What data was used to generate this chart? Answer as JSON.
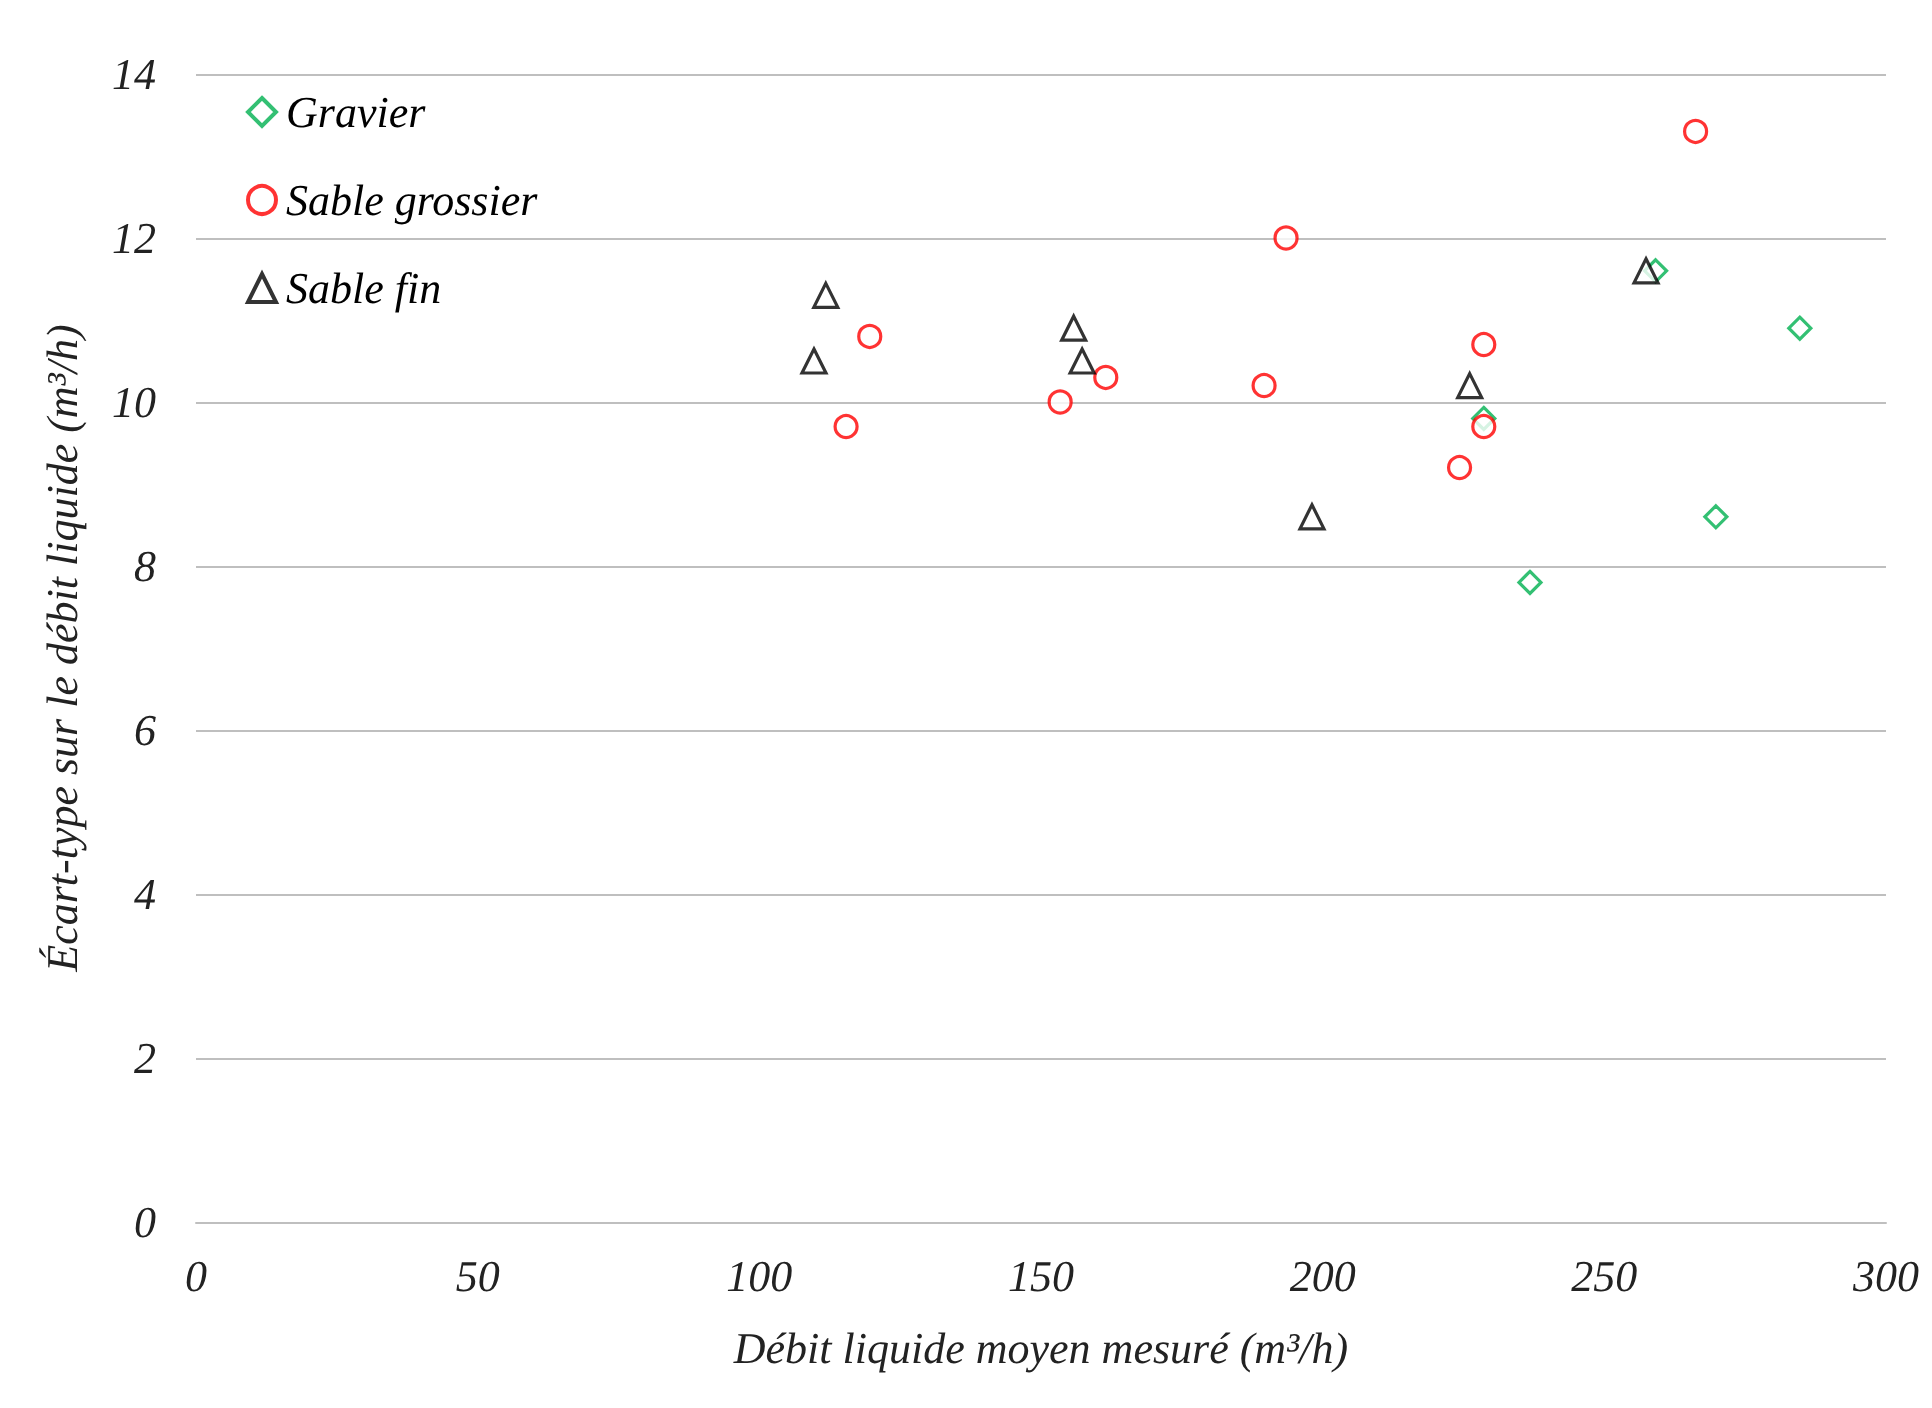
{
  "chart_data": {
    "type": "scatter",
    "xlabel": "Débit liquide moyen mesuré (m³/h)",
    "ylabel": "Écart-type sur le débit liquide (m³/h)",
    "xlim": [
      0,
      300
    ],
    "xticks": [
      0,
      50,
      100,
      150,
      200,
      250,
      300
    ],
    "ylim": [
      0,
      14
    ],
    "yticks": [
      0,
      2,
      4,
      6,
      8,
      10,
      12,
      14
    ],
    "grid": "y",
    "legend": "top left",
    "series": [
      {
        "name": "Gravier",
        "color": "#00b050",
        "marker": "diamond",
        "x": [
          259.1,
          284.7,
          228.6,
          269.8,
          236.8
        ],
        "values": [
          11.6,
          10.9,
          9.8,
          8.6,
          7.8
        ]
      },
      {
        "name": "Sable grossier",
        "color": "#ff0000",
        "marker": "circle",
        "x": [
          115.4,
          119.6,
          153.4,
          161.5,
          189.6,
          193.5,
          228.6,
          228.6,
          224.3,
          266.2
        ],
        "values": [
          9.7,
          10.8,
          10.0,
          10.3,
          10.2,
          12.0,
          10.7,
          9.7,
          9.2,
          13.3
        ]
      },
      {
        "name": "Sable fin",
        "color": "#000000",
        "marker": "triangle",
        "x": [
          111.8,
          109.7,
          155.8,
          157.3,
          198.1,
          226.1,
          257.4
        ],
        "values": [
          11.3,
          10.5,
          10.9,
          10.5,
          8.6,
          10.2,
          11.6
        ]
      }
    ]
  }
}
